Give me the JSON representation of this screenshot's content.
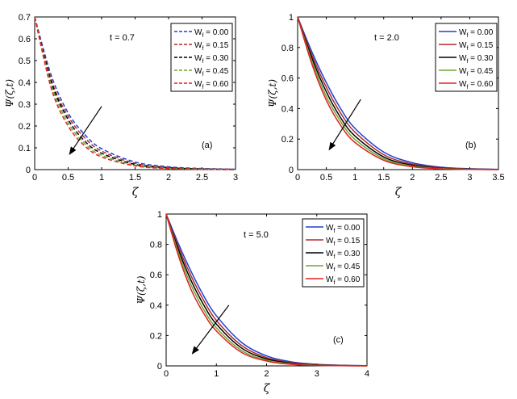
{
  "chart_data": [
    {
      "type": "line",
      "panel_label": "(a)",
      "annotation": "t = 0.7",
      "xlabel": "ζ",
      "ylabel": "Ψ(ζ,t)",
      "xlim": [
        0,
        3
      ],
      "ylim": [
        0,
        0.7
      ],
      "xticks": [
        "0",
        "0.5",
        "1",
        "1.5",
        "2",
        "2.5",
        "3"
      ],
      "yticks": [
        "0",
        "0.1",
        "0.2",
        "0.3",
        "0.4",
        "0.5",
        "0.6",
        "0.7"
      ],
      "line_style": "dashed",
      "legend_position": "top-right",
      "x": [
        0,
        0.25,
        0.5,
        0.75,
        1.0,
        1.5,
        2.0,
        2.5,
        3.0
      ],
      "series": [
        {
          "name": "W_f = 0.00",
          "color": "#1f3fd6",
          "values": [
            0.7,
            0.43,
            0.26,
            0.16,
            0.096,
            0.035,
            0.013,
            0.005,
            0.002
          ]
        },
        {
          "name": "W_f = 0.15",
          "color": "#b02a2a",
          "values": [
            0.7,
            0.41,
            0.245,
            0.145,
            0.085,
            0.029,
            0.01,
            0.003,
            0.001
          ]
        },
        {
          "name": "W_f = 0.30",
          "color": "#000000",
          "values": [
            0.7,
            0.4,
            0.23,
            0.13,
            0.075,
            0.024,
            0.008,
            0.003,
            0.001
          ]
        },
        {
          "name": "W_f = 0.45",
          "color": "#6aa832",
          "values": [
            0.7,
            0.385,
            0.215,
            0.118,
            0.066,
            0.02,
            0.006,
            0.002,
            0.0
          ]
        },
        {
          "name": "W_f = 0.60",
          "color": "#e02020",
          "values": [
            0.7,
            0.37,
            0.2,
            0.108,
            0.058,
            0.017,
            0.005,
            0.001,
            0.0
          ]
        }
      ],
      "arrow": {
        "from": [
          1.0,
          0.29
        ],
        "to": [
          0.52,
          0.07
        ]
      }
    },
    {
      "type": "line",
      "panel_label": "(b)",
      "annotation": "t = 2.0",
      "xlabel": "ζ",
      "ylabel": "Ψ(ζ,t)",
      "xlim": [
        0,
        3.5
      ],
      "ylim": [
        0,
        1
      ],
      "xticks": [
        "0",
        "0.5",
        "1",
        "1.5",
        "2",
        "2.5",
        "3",
        "3.5"
      ],
      "yticks": [
        "0",
        "0.2",
        "0.4",
        "0.6",
        "0.8",
        "1"
      ],
      "line_style": "solid",
      "legend_position": "top-right",
      "x": [
        0,
        0.25,
        0.5,
        0.75,
        1.0,
        1.5,
        2.0,
        2.5,
        3.0,
        3.5
      ],
      "series": [
        {
          "name": "W_f = 0.00",
          "color": "#1f3fd6",
          "values": [
            1.0,
            0.77,
            0.57,
            0.4,
            0.27,
            0.115,
            0.045,
            0.016,
            0.006,
            0.002
          ]
        },
        {
          "name": "W_f = 0.15",
          "color": "#b02a2a",
          "values": [
            1.0,
            0.75,
            0.54,
            0.37,
            0.245,
            0.098,
            0.036,
            0.012,
            0.004,
            0.001
          ]
        },
        {
          "name": "W_f = 0.30",
          "color": "#000000",
          "values": [
            1.0,
            0.73,
            0.51,
            0.34,
            0.22,
            0.083,
            0.029,
            0.009,
            0.003,
            0.001
          ]
        },
        {
          "name": "W_f = 0.45",
          "color": "#6aa832",
          "values": [
            1.0,
            0.71,
            0.48,
            0.315,
            0.198,
            0.071,
            0.023,
            0.007,
            0.002,
            0.0
          ]
        },
        {
          "name": "W_f = 0.60",
          "color": "#e02020",
          "values": [
            1.0,
            0.69,
            0.455,
            0.29,
            0.178,
            0.061,
            0.019,
            0.005,
            0.001,
            0.0
          ]
        }
      ],
      "arrow": {
        "from": [
          1.1,
          0.46
        ],
        "to": [
          0.55,
          0.13
        ]
      }
    },
    {
      "type": "line",
      "panel_label": "(c)",
      "annotation": "t = 5.0",
      "xlabel": "ζ",
      "ylabel": "Ψ(ζ,t)",
      "xlim": [
        0,
        4
      ],
      "ylim": [
        0,
        1
      ],
      "xticks": [
        "0",
        "1",
        "2",
        "3",
        "4"
      ],
      "yticks": [
        "0",
        "0.2",
        "0.4",
        "0.6",
        "0.8",
        "1"
      ],
      "line_style": "solid",
      "legend_position": "top-right",
      "x": [
        0,
        0.25,
        0.5,
        0.75,
        1.0,
        1.5,
        2.0,
        2.5,
        3.0,
        3.5,
        4.0
      ],
      "series": [
        {
          "name": "W_f = 0.00",
          "color": "#1f3fd6",
          "values": [
            1.0,
            0.8,
            0.62,
            0.46,
            0.33,
            0.155,
            0.066,
            0.026,
            0.01,
            0.004,
            0.001
          ]
        },
        {
          "name": "W_f = 0.15",
          "color": "#b02a2a",
          "values": [
            1.0,
            0.78,
            0.59,
            0.43,
            0.3,
            0.135,
            0.055,
            0.021,
            0.008,
            0.003,
            0.001
          ]
        },
        {
          "name": "W_f = 0.30",
          "color": "#000000",
          "values": [
            1.0,
            0.76,
            0.56,
            0.4,
            0.275,
            0.118,
            0.046,
            0.017,
            0.006,
            0.002,
            0.001
          ]
        },
        {
          "name": "W_f = 0.45",
          "color": "#6aa832",
          "values": [
            1.0,
            0.74,
            0.53,
            0.37,
            0.25,
            0.102,
            0.038,
            0.013,
            0.004,
            0.001,
            0.0
          ]
        },
        {
          "name": "W_f = 0.60",
          "color": "#e02020",
          "values": [
            1.0,
            0.72,
            0.5,
            0.345,
            0.23,
            0.089,
            0.032,
            0.01,
            0.003,
            0.001,
            0.0
          ]
        }
      ],
      "arrow": {
        "from": [
          1.25,
          0.4
        ],
        "to": [
          0.52,
          0.08
        ]
      }
    }
  ]
}
